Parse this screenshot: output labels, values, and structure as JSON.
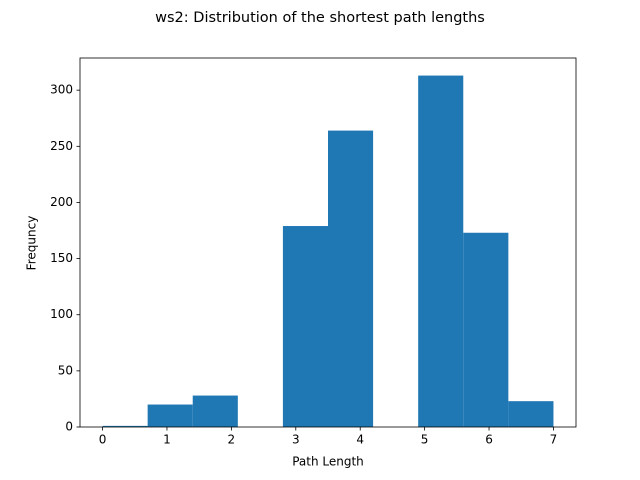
{
  "chart_data": {
    "type": "histogram",
    "title": "ws2: Distribution of the shortest path lengths",
    "x_label": "Path Length",
    "y_label": "Frequncy",
    "bins": [
      0,
      0.7,
      1.4,
      2.1,
      2.8,
      3.5,
      4.2,
      4.9,
      5.6,
      6.3,
      7.0
    ],
    "values": [
      1,
      20,
      28,
      0,
      179,
      264,
      0,
      313,
      173,
      23
    ],
    "color": "#1f77b4",
    "xlim": [
      -0.35,
      7.35
    ],
    "xticks": [
      0,
      1,
      2,
      3,
      4,
      5,
      6,
      7
    ],
    "ylim": [
      0,
      328.65
    ],
    "yticks": [
      0,
      50,
      100,
      150,
      200,
      250,
      300
    ]
  }
}
